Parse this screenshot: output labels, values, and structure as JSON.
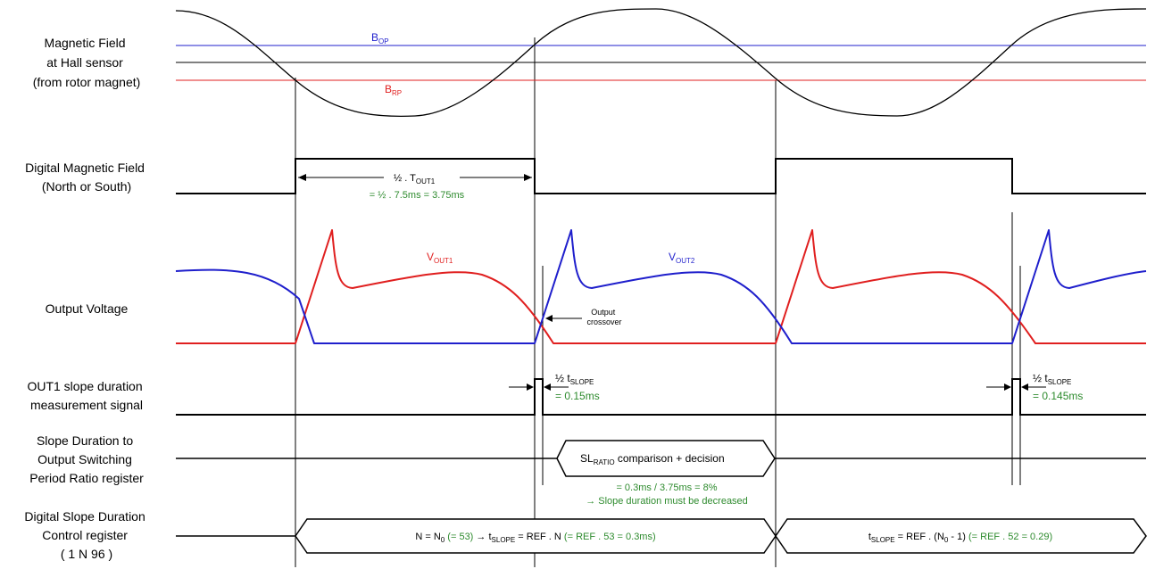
{
  "colors": {
    "black": "#000000",
    "blue": "#1f1fcc",
    "red": "#e01f1f",
    "green": "#2e8b2e"
  },
  "labels": {
    "magnetic": [
      "Magnetic Field",
      "at Hall sensor",
      "(from rotor magnet)"
    ],
    "digital": [
      "Digital Magnetic Field",
      "(North or South)"
    ],
    "output": [
      "Output Voltage"
    ],
    "slope_meas": [
      "OUT1 slope duration",
      "measurement signal"
    ],
    "ratio_reg": [
      "Slope Duration to",
      "Output Switching",
      "Period Ratio register"
    ],
    "ctrl_reg": [
      "Digital Slope Duration",
      "Control register",
      "( 1     N     96 )"
    ]
  },
  "annotations": {
    "bop_main": "B",
    "bop_sub": "OP",
    "brp_main": "B",
    "brp_sub": "RP",
    "half_t_main": "½ . T",
    "half_t_sub": "OUT1",
    "half_t_value": "= ½ . 7.5ms = 3.75ms",
    "vout1_main": "V",
    "vout1_sub": "OUT1",
    "vout2_main": "V",
    "vout2_sub": "OUT2",
    "crossover": [
      "Output",
      "crossover"
    ],
    "tslope1_main": "½ t",
    "tslope1_sub": "SLOPE",
    "tslope1_value": "= 0.15ms",
    "tslope2_main": "½ t",
    "tslope2_sub": "SLOPE",
    "tslope2_value": "= 0.145ms",
    "sl_ratio_main": "SL",
    "sl_ratio_sub": "RATIO",
    "sl_ratio_rest": " comparison + decision",
    "ratio_value": "= 0.3ms / 3.75ms = 8%",
    "ratio_decision": "→ Slope duration must be decreased",
    "ctrl1_a": "N = N",
    "ctrl1_a_sub": "0",
    "ctrl1_b": " (= 53)",
    "ctrl1_c": " → t",
    "ctrl1_c_sub": "SLOPE",
    "ctrl1_d": " = REF . N",
    "ctrl1_e": " (= REF . 53 = 0.3ms)",
    "ctrl2_a": "t",
    "ctrl2_a_sub": "SLOPE",
    "ctrl2_b": " = REF . (N",
    "ctrl2_b_sub": "0",
    "ctrl2_c": " - 1)",
    "ctrl2_d": " (= REF . 52 = 0.29)"
  }
}
